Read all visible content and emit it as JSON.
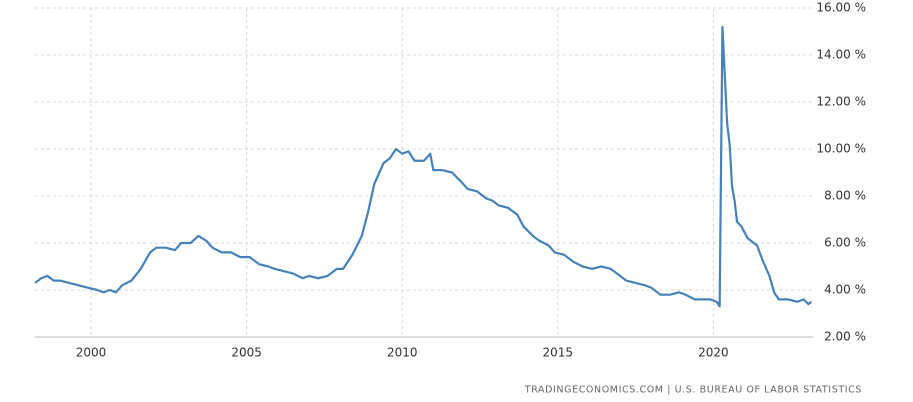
{
  "chart_data": {
    "type": "line",
    "source": "TRADINGECONOMICS.COM  |  U.S. BUREAU OF LABOR STATISTICS",
    "color": "#4682b9",
    "grid": true,
    "xlim": [
      1998.2,
      2023.2
    ],
    "xticks": [
      2000,
      2005,
      2010,
      2015,
      2020
    ],
    "ylim": [
      2,
      16
    ],
    "yticks": [
      {
        "value": 2,
        "label": "2.00 %"
      },
      {
        "value": 4,
        "label": "4.00 %"
      },
      {
        "value": 6,
        "label": "6.00 %"
      },
      {
        "value": 8,
        "label": "8.00 %"
      },
      {
        "value": 10,
        "label": "10.00 %"
      },
      {
        "value": 12,
        "label": "12.00 %"
      },
      {
        "value": 14,
        "label": "14.00 %"
      },
      {
        "value": 16,
        "label": "16.00 %"
      }
    ],
    "x": [
      1998.2,
      1998.4,
      1998.6,
      1998.8,
      1999.0,
      1999.3,
      1999.6,
      1999.9,
      2000.2,
      2000.4,
      2000.6,
      2000.8,
      2001.0,
      2001.3,
      2001.6,
      2001.9,
      2002.1,
      2002.4,
      2002.7,
      2002.9,
      2003.2,
      2003.45,
      2003.7,
      2003.9,
      2004.2,
      2004.5,
      2004.8,
      2005.1,
      2005.4,
      2005.7,
      2005.9,
      2006.2,
      2006.5,
      2006.8,
      2007.0,
      2007.3,
      2007.6,
      2007.9,
      2008.1,
      2008.4,
      2008.7,
      2008.9,
      2009.1,
      2009.4,
      2009.6,
      2009.8,
      2010.0,
      2010.2,
      2010.4,
      2010.7,
      2010.9,
      2011.0,
      2011.3,
      2011.6,
      2011.9,
      2012.1,
      2012.4,
      2012.7,
      2012.9,
      2013.1,
      2013.4,
      2013.7,
      2013.9,
      2014.2,
      2014.4,
      2014.7,
      2014.9,
      2015.2,
      2015.5,
      2015.8,
      2016.1,
      2016.4,
      2016.7,
      2016.9,
      2017.2,
      2017.5,
      2017.8,
      2018.0,
      2018.3,
      2018.6,
      2018.9,
      2019.1,
      2019.4,
      2019.7,
      2019.9,
      2020.1,
      2020.2,
      2020.29,
      2020.36,
      2020.44,
      2020.52,
      2020.6,
      2020.68,
      2020.76,
      2020.9,
      2021.1,
      2021.4,
      2021.6,
      2021.8,
      2021.95,
      2022.1,
      2022.4,
      2022.7,
      2022.9,
      2023.05,
      2023.15
    ],
    "values": [
      4.3,
      4.5,
      4.6,
      4.4,
      4.4,
      4.3,
      4.2,
      4.1,
      4.0,
      3.9,
      4.0,
      3.9,
      4.2,
      4.4,
      4.9,
      5.6,
      5.8,
      5.8,
      5.7,
      6.0,
      6.0,
      6.3,
      6.1,
      5.8,
      5.6,
      5.6,
      5.4,
      5.4,
      5.1,
      5.0,
      4.9,
      4.8,
      4.7,
      4.5,
      4.6,
      4.5,
      4.6,
      4.9,
      4.9,
      5.5,
      6.3,
      7.3,
      8.5,
      9.4,
      9.6,
      10.0,
      9.8,
      9.9,
      9.5,
      9.5,
      9.8,
      9.1,
      9.1,
      9.0,
      8.6,
      8.3,
      8.2,
      7.9,
      7.8,
      7.6,
      7.5,
      7.2,
      6.7,
      6.3,
      6.1,
      5.9,
      5.6,
      5.5,
      5.2,
      5.0,
      4.9,
      5.0,
      4.9,
      4.7,
      4.4,
      4.3,
      4.2,
      4.1,
      3.8,
      3.8,
      3.9,
      3.8,
      3.6,
      3.6,
      3.6,
      3.5,
      3.3,
      15.2,
      13.3,
      11.1,
      10.2,
      8.4,
      7.8,
      6.9,
      6.7,
      6.2,
      5.9,
      5.2,
      4.6,
      3.9,
      3.6,
      3.6,
      3.5,
      3.6,
      3.4,
      3.5
    ]
  }
}
